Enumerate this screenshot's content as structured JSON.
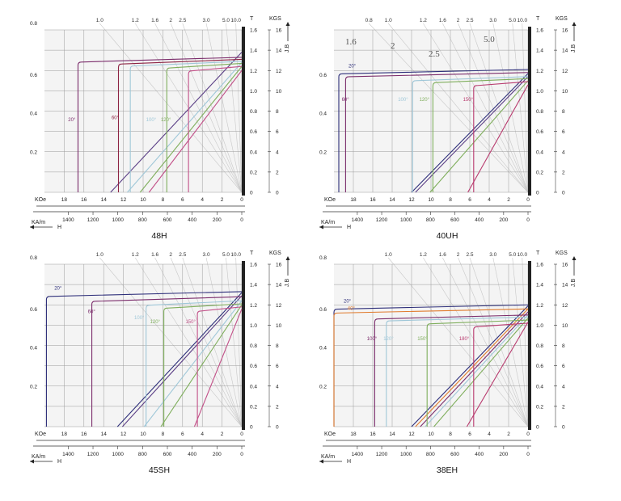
{
  "colors": {
    "background": "#ffffff",
    "plot_bg": "#f4f4f4",
    "grid": "#9a9a9a",
    "axis_bar": "#222222"
  },
  "units": {
    "t": "T",
    "kgs": "KGS",
    "jb": "J.B",
    "koe": "KOe",
    "kam": "KA/m",
    "h": "H"
  },
  "chart_data": [
    {
      "type": "line",
      "title": "48H",
      "pc_labels": [
        "1.0",
        "1.2",
        "1.6",
        "2",
        "2.5",
        "3.0",
        "5.0",
        "10.0"
      ],
      "h_koe_ticks": [
        "18",
        "16",
        "14",
        "12",
        "10",
        "8",
        "6",
        "4",
        "2",
        "0"
      ],
      "h_kam_ticks": [
        "1400",
        "1200",
        "1000",
        "800",
        "600",
        "400",
        "200",
        "0"
      ],
      "t_ticks": [
        "0",
        "0.2",
        "0.4",
        "0.6",
        "0.8",
        "1.0",
        "1.2",
        "1.4",
        "1.6"
      ],
      "kgs_ticks": [
        "0",
        "2",
        "4",
        "6",
        "8",
        "10",
        "12",
        "14",
        "16"
      ],
      "left_ticks": [
        "0.8",
        "0.6",
        "0.4",
        "0.2"
      ],
      "xlim_koe": [
        20,
        0
      ],
      "ylim_t": [
        0,
        1.6
      ],
      "notes": [],
      "series": [
        {
          "name": "20°",
          "color": "#7b2c6b",
          "hk": 16.6,
          "br": 1.33,
          "lx": 17.6,
          "ly": 0.7
        },
        {
          "name": "60°",
          "color": "#8d2444",
          "hk": 12.5,
          "br": 1.31,
          "lx": 13.2,
          "ly": 0.72
        },
        {
          "name": "100°",
          "color": "#9fc7d8",
          "hk": 11.3,
          "br": 1.29,
          "lx": 9.7,
          "ly": 0.7
        },
        {
          "name": "120°",
          "color": "#7fae5c",
          "hk": 7.6,
          "br": 1.27,
          "lx": 8.2,
          "ly": 0.7
        },
        {
          "name": "",
          "color": "#c25088",
          "hk": 5.4,
          "br": 1.24,
          "lx": 0,
          "ly": 0
        }
      ],
      "loads": [
        {
          "color": "#5b3f86",
          "x0": 13.3,
          "x1": 0,
          "y1": 1.38
        },
        {
          "color": "#9fc7d8",
          "x0": 11.6,
          "x1": 0,
          "y1": 1.28
        },
        {
          "color": "#7fae5c",
          "x0": 10.3,
          "x1": 0,
          "y1": 1.24
        },
        {
          "color": "#c25088",
          "x0": 9.4,
          "x1": 0,
          "y1": 1.2
        }
      ]
    },
    {
      "type": "line",
      "title": "40UH",
      "pc_labels": [
        "0.8",
        "1.0",
        "1.2",
        "1.6",
        "2",
        "2.5",
        "3.0",
        "5.0",
        "10.0"
      ],
      "h_koe_ticks": [
        "18",
        "16",
        "14",
        "12",
        "10",
        "8",
        "6",
        "4",
        "2",
        "0"
      ],
      "h_kam_ticks": [
        "1400",
        "1200",
        "1000",
        "800",
        "600",
        "400",
        "200",
        "0"
      ],
      "t_ticks": [
        "0",
        "0.2",
        "0.4",
        "0.6",
        "0.8",
        "1.0",
        "1.2",
        "1.4",
        "1.6"
      ],
      "kgs_ticks": [
        "0",
        "2",
        "4",
        "6",
        "8",
        "10",
        "12",
        "14",
        "16"
      ],
      "left_ticks": [
        "0.6",
        "0.4",
        "0.2"
      ],
      "xlim_koe": [
        20,
        0
      ],
      "ylim_t": [
        0,
        1.6
      ],
      "notes": [
        "1.6",
        "2",
        "2.5",
        "5.0"
      ],
      "series": [
        {
          "name": "20°",
          "color": "#2e2f7a",
          "hk": 19.5,
          "br": 1.21,
          "lx": 18.5,
          "ly": 1.23
        },
        {
          "name": "60°",
          "color": "#7b2c6b",
          "hk": 18.8,
          "br": 1.18,
          "lx": 19.2,
          "ly": 0.9
        },
        {
          "name": "100°",
          "color": "#9fc7d8",
          "hk": 11.9,
          "br": 1.14,
          "lx": 13.4,
          "ly": 0.9
        },
        {
          "name": "120°",
          "color": "#7fae5c",
          "hk": 9.8,
          "br": 1.12,
          "lx": 11.2,
          "ly": 0.9
        },
        {
          "name": "150°",
          "color": "#b83a6e",
          "hk": 5.6,
          "br": 1.09,
          "lx": 6.7,
          "ly": 0.9
        }
      ],
      "loads": [
        {
          "color": "#2e2f7a",
          "x0": 12.0,
          "x1": 0,
          "y1": 1.17
        },
        {
          "color": "#5b3f86",
          "x0": 11.6,
          "x1": 0,
          "y1": 1.14
        },
        {
          "color": "#7fae5c",
          "x0": 10.1,
          "x1": 0,
          "y1": 1.1
        },
        {
          "color": "#b83a6e",
          "x0": 6.2,
          "x1": 0,
          "y1": 1.06
        }
      ]
    },
    {
      "type": "line",
      "title": "45SH",
      "pc_labels": [
        "1.0",
        "1.2",
        "1.6",
        "2",
        "2.5",
        "3.0",
        "5.0",
        "10.0"
      ],
      "h_koe_ticks": [
        "18",
        "16",
        "14",
        "12",
        "10",
        "8",
        "6",
        "4",
        "2",
        "0"
      ],
      "h_kam_ticks": [
        "1400",
        "1200",
        "1000",
        "800",
        "600",
        "400",
        "200",
        "0"
      ],
      "t_ticks": [
        "0",
        "0.2",
        "0.4",
        "0.6",
        "0.8",
        "1.0",
        "1.2",
        "1.4",
        "1.6"
      ],
      "kgs_ticks": [
        "0",
        "2",
        "4",
        "6",
        "8",
        "10",
        "12",
        "14",
        "16"
      ],
      "left_ticks": [
        "0.8",
        "0.6",
        "0.4",
        "0.2"
      ],
      "xlim_koe": [
        20,
        0
      ],
      "ylim_t": [
        0,
        1.6
      ],
      "notes": [],
      "series": [
        {
          "name": "20°",
          "color": "#2e2f7a",
          "hk": 19.8,
          "br": 1.33,
          "lx": 19.0,
          "ly": 1.35
        },
        {
          "name": "60°",
          "color": "#7b2c6b",
          "hk": 15.2,
          "br": 1.28,
          "lx": 15.6,
          "ly": 1.12
        },
        {
          "name": "100°",
          "color": "#9fc7d8",
          "hk": 9.7,
          "br": 1.24,
          "lx": 10.9,
          "ly": 1.06
        },
        {
          "name": "120°",
          "color": "#7fae5c",
          "hk": 7.9,
          "br": 1.21,
          "lx": 9.3,
          "ly": 1.02
        },
        {
          "name": "150°",
          "color": "#c25088",
          "hk": 4.5,
          "br": 1.18,
          "lx": 5.7,
          "ly": 1.02
        }
      ],
      "loads": [
        {
          "color": "#2e2f7a",
          "x0": 12.6,
          "x1": 0,
          "y1": 1.32
        },
        {
          "color": "#5b3f86",
          "x0": 12.1,
          "x1": 0,
          "y1": 1.29
        },
        {
          "color": "#9fc7d8",
          "x0": 9.9,
          "x1": 0,
          "y1": 1.24
        },
        {
          "color": "#7fae5c",
          "x0": 8.2,
          "x1": 0,
          "y1": 1.2
        },
        {
          "color": "#c25088",
          "x0": 4.8,
          "x1": 0,
          "y1": 1.16
        }
      ]
    },
    {
      "type": "line",
      "title": "38EH",
      "pc_labels": [
        "1.0",
        "1.2",
        "1.6",
        "2",
        "2.5",
        "3.0",
        "5.0",
        "10.0"
      ],
      "h_koe_ticks": [
        "18",
        "16",
        "14",
        "12",
        "10",
        "8",
        "6",
        "4",
        "2",
        "0"
      ],
      "h_kam_ticks": [
        "1400",
        "1200",
        "1000",
        "800",
        "600",
        "400",
        "200",
        "0"
      ],
      "t_ticks": [
        "0",
        "0.2",
        "0.4",
        "0.6",
        "0.8",
        "1.0",
        "1.2",
        "1.4",
        "1.6"
      ],
      "kgs_ticks": [
        "0",
        "2",
        "4",
        "6",
        "8",
        "10",
        "12",
        "14",
        "16"
      ],
      "left_ticks": [
        "0.8",
        "0.6",
        "0.4",
        "0.2"
      ],
      "xlim_koe": [
        20,
        0
      ],
      "ylim_t": [
        0,
        1.6
      ],
      "notes": [],
      "series": [
        {
          "name": "20°",
          "color": "#2e2f7a",
          "hk": 20.0,
          "br": 1.2,
          "lx": 19.0,
          "ly": 1.22
        },
        {
          "name": "40°",
          "color": "#e07a2c",
          "hk": 20.0,
          "br": 1.16,
          "lx": 18.6,
          "ly": 1.15
        },
        {
          "name": "100°",
          "color": "#7b2c6b",
          "hk": 15.8,
          "br": 1.1,
          "lx": 16.6,
          "ly": 0.85
        },
        {
          "name": "120°",
          "color": "#9fc7d8",
          "hk": 14.6,
          "br": 1.08,
          "lx": 14.9,
          "ly": 0.85
        },
        {
          "name": "150°",
          "color": "#7fae5c",
          "hk": 10.4,
          "br": 1.05,
          "lx": 11.4,
          "ly": 0.85
        },
        {
          "name": "180°",
          "color": "#b83a6e",
          "hk": 5.6,
          "br": 1.02,
          "lx": 7.1,
          "ly": 0.85
        }
      ],
      "loads": [
        {
          "color": "#2e2f7a",
          "x0": 12.0,
          "x1": 0,
          "y1": 1.19
        },
        {
          "color": "#e07a2c",
          "x0": 11.6,
          "x1": 0,
          "y1": 1.16
        },
        {
          "color": "#7b2c6b",
          "x0": 11.1,
          "x1": 0,
          "y1": 1.13
        },
        {
          "color": "#9fc7d8",
          "x0": 10.6,
          "x1": 0,
          "y1": 1.1
        },
        {
          "color": "#7fae5c",
          "x0": 9.7,
          "x1": 0,
          "y1": 1.07
        },
        {
          "color": "#b83a6e",
          "x0": 6.3,
          "x1": 0,
          "y1": 1.03
        }
      ]
    }
  ]
}
